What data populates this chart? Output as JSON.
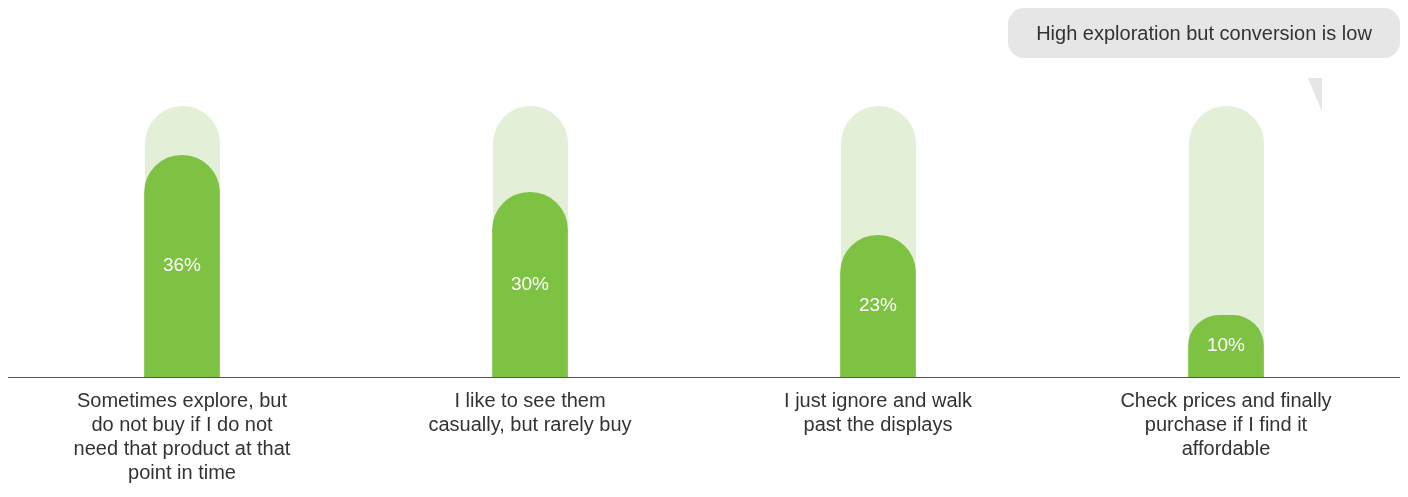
{
  "chart_data": {
    "type": "bar",
    "categories": [
      "Sometimes explore, but do not buy if I do not need that product at that point in time",
      "I like to see them casually, but rarely buy",
      "I just ignore and walk past the displays",
      "Check prices and finally purchase if I find it affordable"
    ],
    "values": [
      36,
      30,
      23,
      10
    ],
    "value_labels": [
      "36%",
      "30%",
      "23%",
      "10%"
    ],
    "color": "#7dc242",
    "ylim": [
      0,
      44
    ],
    "annotations": [
      "High exploration but conversion is low"
    ],
    "grid": false,
    "legend": false
  }
}
